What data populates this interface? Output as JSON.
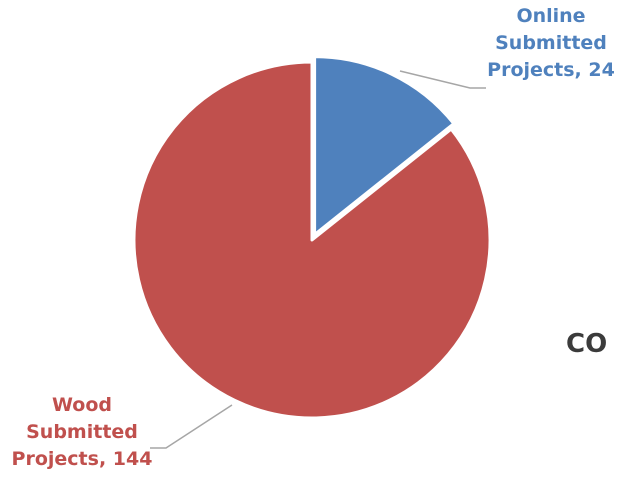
{
  "chart_data": {
    "type": "pie",
    "slices": [
      {
        "label": "Online Submitted Projects",
        "value": 24,
        "color": "#4f81bd"
      },
      {
        "label": "Wood Submitted Projects",
        "value": 144,
        "color": "#c0504d"
      }
    ],
    "data_labels": {
      "online": [
        "Online",
        "Submitted",
        "Projects, 24"
      ],
      "wood": [
        "Wood",
        "Submitted",
        "Projects, 144"
      ]
    },
    "title_fragment": "CO"
  }
}
